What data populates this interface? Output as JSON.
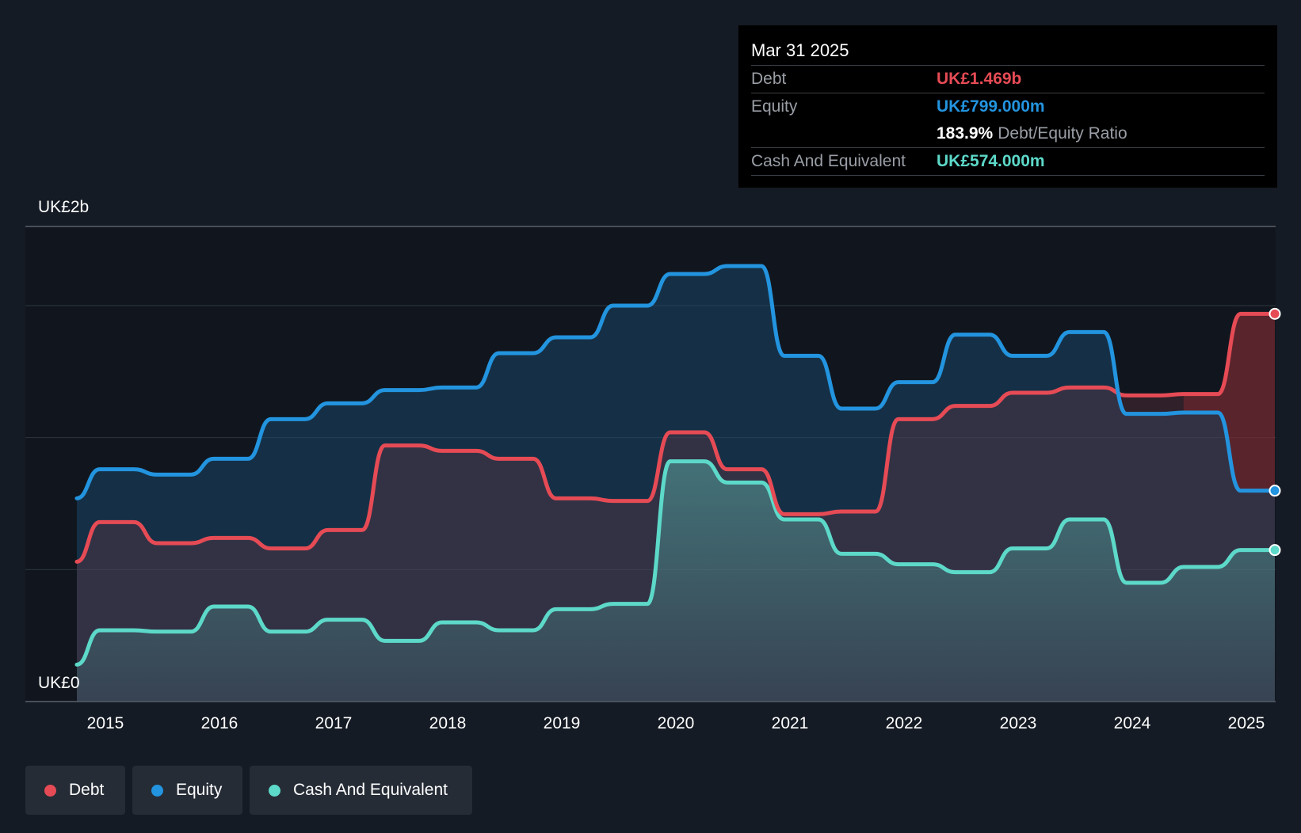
{
  "chart_data": {
    "type": "area",
    "x_ticks": [
      "2015",
      "2016",
      "2017",
      "2018",
      "2019",
      "2020",
      "2021",
      "2022",
      "2023",
      "2024",
      "2025"
    ],
    "y_top_label": "UK£2b",
    "y_bottom_label": "UK£0",
    "ylim": [
      0,
      1.8
    ],
    "grid": true,
    "series": [
      {
        "name": "Equity",
        "color": "#2394df",
        "x": [
          2014.75,
          2014.95,
          2015.25,
          2015.45,
          2015.75,
          2015.95,
          2016.25,
          2016.45,
          2016.75,
          2016.95,
          2017.25,
          2017.45,
          2017.75,
          2017.95,
          2018.25,
          2018.45,
          2018.75,
          2018.95,
          2019.25,
          2019.45,
          2019.75,
          2019.95,
          2020.25,
          2020.45,
          2020.75,
          2020.95,
          2021.25,
          2021.45,
          2021.75,
          2021.95,
          2022.25,
          2022.45,
          2022.75,
          2022.95,
          2023.25,
          2023.45,
          2023.75,
          2023.95,
          2024.25,
          2024.45,
          2024.75,
          2024.95,
          2025.25
        ],
        "values": [
          0.77,
          0.88,
          0.88,
          0.86,
          0.86,
          0.92,
          0.92,
          1.07,
          1.07,
          1.13,
          1.13,
          1.18,
          1.18,
          1.19,
          1.19,
          1.32,
          1.32,
          1.38,
          1.38,
          1.5,
          1.5,
          1.62,
          1.62,
          1.65,
          1.65,
          1.31,
          1.31,
          1.11,
          1.11,
          1.21,
          1.21,
          1.39,
          1.39,
          1.31,
          1.31,
          1.4,
          1.4,
          1.09,
          1.09,
          1.095,
          1.095,
          0.799,
          0.799
        ]
      },
      {
        "name": "Debt",
        "color": "#e64b55",
        "x": [
          2014.75,
          2014.95,
          2015.25,
          2015.45,
          2015.75,
          2015.95,
          2016.25,
          2016.45,
          2016.75,
          2016.95,
          2017.25,
          2017.45,
          2017.75,
          2017.95,
          2018.25,
          2018.45,
          2018.75,
          2018.95,
          2019.25,
          2019.45,
          2019.75,
          2019.95,
          2020.25,
          2020.45,
          2020.75,
          2020.95,
          2021.25,
          2021.45,
          2021.75,
          2021.95,
          2022.25,
          2022.45,
          2022.75,
          2022.95,
          2023.25,
          2023.45,
          2023.75,
          2023.95,
          2024.25,
          2024.45,
          2024.75,
          2024.95,
          2025.25
        ],
        "values": [
          0.53,
          0.68,
          0.68,
          0.6,
          0.6,
          0.62,
          0.62,
          0.58,
          0.58,
          0.65,
          0.65,
          0.97,
          0.97,
          0.95,
          0.95,
          0.92,
          0.92,
          0.77,
          0.77,
          0.76,
          0.76,
          1.02,
          1.02,
          0.88,
          0.88,
          0.71,
          0.71,
          0.72,
          0.72,
          1.07,
          1.07,
          1.12,
          1.12,
          1.17,
          1.17,
          1.19,
          1.19,
          1.16,
          1.16,
          1.165,
          1.165,
          1.469,
          1.469
        ]
      },
      {
        "name": "Cash And Equivalent",
        "color": "#5dd9c9",
        "x": [
          2014.75,
          2014.95,
          2015.25,
          2015.45,
          2015.75,
          2015.95,
          2016.25,
          2016.45,
          2016.75,
          2016.95,
          2017.25,
          2017.45,
          2017.75,
          2017.95,
          2018.25,
          2018.45,
          2018.75,
          2018.95,
          2019.25,
          2019.45,
          2019.75,
          2019.95,
          2020.25,
          2020.45,
          2020.75,
          2020.95,
          2021.25,
          2021.45,
          2021.75,
          2021.95,
          2022.25,
          2022.45,
          2022.75,
          2022.95,
          2023.25,
          2023.45,
          2023.75,
          2023.95,
          2024.25,
          2024.45,
          2024.75,
          2024.95,
          2025.25
        ],
        "values": [
          0.14,
          0.27,
          0.27,
          0.265,
          0.265,
          0.36,
          0.36,
          0.265,
          0.265,
          0.31,
          0.31,
          0.23,
          0.23,
          0.3,
          0.3,
          0.27,
          0.27,
          0.35,
          0.35,
          0.37,
          0.37,
          0.91,
          0.91,
          0.83,
          0.83,
          0.69,
          0.69,
          0.56,
          0.56,
          0.52,
          0.52,
          0.49,
          0.49,
          0.58,
          0.58,
          0.69,
          0.69,
          0.45,
          0.45,
          0.51,
          0.51,
          0.574,
          0.574
        ]
      }
    ]
  },
  "tooltip": {
    "date": "Mar 31 2025",
    "debt_label": "Debt",
    "debt_value": "UK£1.469b",
    "equity_label": "Equity",
    "equity_value": "UK£799.000m",
    "ratio_value": "183.9%",
    "ratio_label": "Debt/Equity Ratio",
    "cash_label": "Cash And Equivalent",
    "cash_value": "UK£574.000m"
  },
  "legend": {
    "debt": "Debt",
    "equity": "Equity",
    "cash": "Cash And Equivalent"
  },
  "colors": {
    "debt": "#e64b55",
    "equity": "#2394df",
    "cash": "#5dd9c9",
    "background": "#151b24"
  }
}
